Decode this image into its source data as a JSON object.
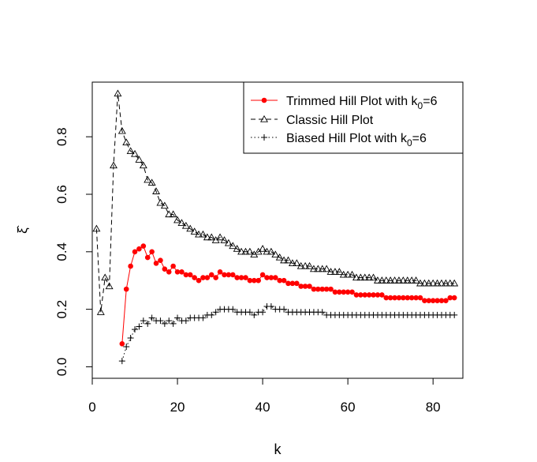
{
  "chart_data": {
    "type": "line",
    "title": "",
    "xlabel": "k",
    "ylabel": "ξ̂",
    "xlim": [
      0,
      87
    ],
    "ylim": [
      -0.04,
      0.99
    ],
    "x_ticks": [
      0,
      20,
      40,
      60,
      80
    ],
    "x_tick_labels": [
      "0",
      "20",
      "40",
      "60",
      "80"
    ],
    "y_ticks": [
      0.0,
      0.2,
      0.4,
      0.6,
      0.8
    ],
    "y_tick_labels": [
      "0.0",
      "0.2",
      "0.4",
      "0.6",
      "0.8"
    ],
    "grid": false,
    "legend_position": "top-right",
    "series": [
      {
        "name": "Trimmed Hill Plot with k0=6",
        "legend_main": "Trimmed Hill Plot with k",
        "legend_sub": "0",
        "legend_tail": "=6",
        "color": "#ff0000",
        "line_style": "solid",
        "marker": "filled-circle",
        "x": [
          7,
          8,
          9,
          10,
          11,
          12,
          13,
          14,
          15,
          16,
          17,
          18,
          19,
          20,
          21,
          22,
          23,
          24,
          25,
          26,
          27,
          28,
          29,
          30,
          31,
          32,
          33,
          34,
          35,
          36,
          37,
          38,
          39,
          40,
          41,
          42,
          43,
          44,
          45,
          46,
          47,
          48,
          49,
          50,
          51,
          52,
          53,
          54,
          55,
          56,
          57,
          58,
          59,
          60,
          61,
          62,
          63,
          64,
          65,
          66,
          67,
          68,
          69,
          70,
          71,
          72,
          73,
          74,
          75,
          76,
          77,
          78,
          79,
          80,
          81,
          82,
          83,
          84,
          85
        ],
        "values": [
          0.08,
          0.27,
          0.35,
          0.4,
          0.41,
          0.42,
          0.38,
          0.4,
          0.36,
          0.37,
          0.34,
          0.33,
          0.35,
          0.33,
          0.33,
          0.32,
          0.32,
          0.31,
          0.3,
          0.31,
          0.31,
          0.32,
          0.31,
          0.33,
          0.32,
          0.32,
          0.32,
          0.31,
          0.31,
          0.31,
          0.3,
          0.3,
          0.3,
          0.32,
          0.31,
          0.31,
          0.31,
          0.3,
          0.3,
          0.29,
          0.29,
          0.29,
          0.28,
          0.28,
          0.28,
          0.27,
          0.27,
          0.27,
          0.27,
          0.27,
          0.26,
          0.26,
          0.26,
          0.26,
          0.26,
          0.25,
          0.25,
          0.25,
          0.25,
          0.25,
          0.25,
          0.25,
          0.24,
          0.24,
          0.24,
          0.24,
          0.24,
          0.24,
          0.24,
          0.24,
          0.24,
          0.23,
          0.23,
          0.23,
          0.23,
          0.23,
          0.23,
          0.24,
          0.24
        ]
      },
      {
        "name": "Classic Hill Plot",
        "legend_main": "Classic Hill Plot",
        "legend_sub": "",
        "legend_tail": "",
        "color": "#000000",
        "line_style": "dashed",
        "marker": "open-triangle",
        "x": [
          1,
          2,
          3,
          4,
          5,
          6,
          7,
          8,
          9,
          10,
          11,
          12,
          13,
          14,
          15,
          16,
          17,
          18,
          19,
          20,
          21,
          22,
          23,
          24,
          25,
          26,
          27,
          28,
          29,
          30,
          31,
          32,
          33,
          34,
          35,
          36,
          37,
          38,
          39,
          40,
          41,
          42,
          43,
          44,
          45,
          46,
          47,
          48,
          49,
          50,
          51,
          52,
          53,
          54,
          55,
          56,
          57,
          58,
          59,
          60,
          61,
          62,
          63,
          64,
          65,
          66,
          67,
          68,
          69,
          70,
          71,
          72,
          73,
          74,
          75,
          76,
          77,
          78,
          79,
          80,
          81,
          82,
          83,
          84,
          85
        ],
        "values": [
          0.48,
          0.19,
          0.31,
          0.28,
          0.7,
          0.95,
          0.82,
          0.78,
          0.75,
          0.74,
          0.72,
          0.7,
          0.65,
          0.64,
          0.61,
          0.57,
          0.56,
          0.53,
          0.53,
          0.51,
          0.5,
          0.49,
          0.48,
          0.47,
          0.46,
          0.46,
          0.45,
          0.45,
          0.44,
          0.45,
          0.44,
          0.43,
          0.42,
          0.41,
          0.4,
          0.4,
          0.4,
          0.39,
          0.4,
          0.41,
          0.4,
          0.4,
          0.39,
          0.38,
          0.37,
          0.37,
          0.36,
          0.36,
          0.35,
          0.35,
          0.35,
          0.34,
          0.34,
          0.34,
          0.34,
          0.33,
          0.33,
          0.33,
          0.32,
          0.32,
          0.32,
          0.31,
          0.31,
          0.31,
          0.31,
          0.31,
          0.3,
          0.3,
          0.3,
          0.3,
          0.3,
          0.3,
          0.3,
          0.3,
          0.3,
          0.3,
          0.29,
          0.29,
          0.29,
          0.29,
          0.29,
          0.29,
          0.29,
          0.29,
          0.29
        ]
      },
      {
        "name": "Biased Hill Plot with k0=6",
        "legend_main": "Biased Hill Plot with k",
        "legend_sub": "0",
        "legend_tail": "=6",
        "color": "#000000",
        "line_style": "dotted",
        "marker": "plus",
        "x": [
          7,
          8,
          9,
          10,
          11,
          12,
          13,
          14,
          15,
          16,
          17,
          18,
          19,
          20,
          21,
          22,
          23,
          24,
          25,
          26,
          27,
          28,
          29,
          30,
          31,
          32,
          33,
          34,
          35,
          36,
          37,
          38,
          39,
          40,
          41,
          42,
          43,
          44,
          45,
          46,
          47,
          48,
          49,
          50,
          51,
          52,
          53,
          54,
          55,
          56,
          57,
          58,
          59,
          60,
          61,
          62,
          63,
          64,
          65,
          66,
          67,
          68,
          69,
          70,
          71,
          72,
          73,
          74,
          75,
          76,
          77,
          78,
          79,
          80,
          81,
          82,
          83,
          84,
          85
        ],
        "values": [
          0.02,
          0.07,
          0.1,
          0.13,
          0.14,
          0.16,
          0.15,
          0.17,
          0.16,
          0.16,
          0.15,
          0.16,
          0.15,
          0.17,
          0.16,
          0.16,
          0.17,
          0.17,
          0.17,
          0.17,
          0.18,
          0.18,
          0.19,
          0.2,
          0.2,
          0.2,
          0.2,
          0.19,
          0.19,
          0.19,
          0.19,
          0.18,
          0.19,
          0.19,
          0.21,
          0.21,
          0.2,
          0.2,
          0.2,
          0.19,
          0.19,
          0.19,
          0.19,
          0.19,
          0.19,
          0.19,
          0.19,
          0.19,
          0.18,
          0.18,
          0.18,
          0.18,
          0.18,
          0.18,
          0.18,
          0.18,
          0.18,
          0.18,
          0.18,
          0.18,
          0.18,
          0.18,
          0.18,
          0.18,
          0.18,
          0.18,
          0.18,
          0.18,
          0.18,
          0.18,
          0.18,
          0.18,
          0.18,
          0.18,
          0.18,
          0.18,
          0.18,
          0.18,
          0.18
        ]
      }
    ]
  }
}
